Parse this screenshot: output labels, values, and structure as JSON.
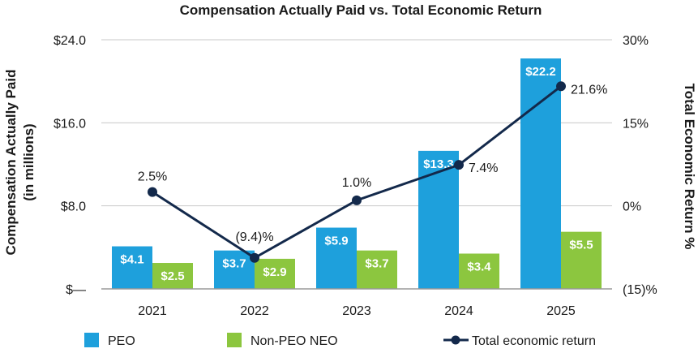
{
  "chart_data": {
    "type": "bar",
    "title": "Compensation Actually Paid vs. Total Economic Return",
    "categories": [
      "2021",
      "2022",
      "2023",
      "2024",
      "2025"
    ],
    "ylabel": "Compensation Actually Paid (in millions)",
    "ylabel_line1": "Compensation Actually Paid",
    "ylabel_line2": "(in millions)",
    "y2label": "Total Economic Return %",
    "ylim": [
      0,
      24
    ],
    "y2lim": [
      -15,
      30
    ],
    "y_ticks": [
      0,
      8,
      16,
      24
    ],
    "y_tick_labels": [
      "$—",
      "$8.0",
      "$16.0",
      "$24.0"
    ],
    "y2_ticks": [
      -15,
      0,
      15,
      30
    ],
    "y2_tick_labels": [
      "(15)%",
      "0%",
      "15%",
      "30%"
    ],
    "grid": true,
    "legend_position": "bottom",
    "series": [
      {
        "name": "PEO",
        "type": "bar",
        "color": "#1ea0dc",
        "values": [
          4.1,
          3.7,
          5.9,
          13.3,
          22.2
        ],
        "labels": [
          "$4.1",
          "$3.7",
          "$5.9",
          "$13.3",
          "$22.2"
        ]
      },
      {
        "name": "Non-PEO NEO",
        "type": "bar",
        "color": "#8cc63f",
        "values": [
          2.5,
          2.9,
          3.7,
          3.4,
          5.5
        ],
        "labels": [
          "$2.5",
          "$2.9",
          "$3.7",
          "$3.4",
          "$5.5"
        ]
      },
      {
        "name": "Total economic return",
        "type": "line",
        "axis": "right",
        "color": "#13294b",
        "values": [
          2.5,
          -9.4,
          1.0,
          7.4,
          21.6
        ],
        "labels": [
          "2.5%",
          "(9.4)%",
          "1.0%",
          "7.4%",
          "21.6%"
        ]
      }
    ]
  }
}
